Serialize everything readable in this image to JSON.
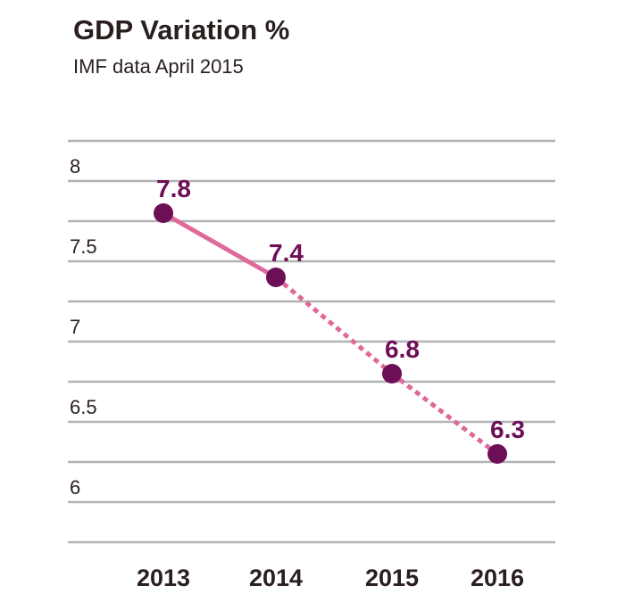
{
  "chart_data": {
    "type": "line",
    "title": "GDP Variation %",
    "subtitle": "IMF data April 2015",
    "categories": [
      "2013",
      "2014",
      "2015",
      "2016"
    ],
    "values": [
      7.8,
      7.4,
      6.8,
      6.3
    ],
    "data_labels": [
      "7.8",
      "7.4",
      "6.8",
      "6.3"
    ],
    "yticks": [
      {
        "value": 6,
        "label": "6"
      },
      {
        "value": 6.5,
        "label": "6.5"
      },
      {
        "value": 7,
        "label": "7"
      },
      {
        "value": 7.5,
        "label": "7.5"
      },
      {
        "value": 8,
        "label": "8"
      }
    ],
    "ylim": [
      5.75,
      8.25
    ],
    "grid": true,
    "solid_until_category": "2014",
    "colors": {
      "line": "#e0689a",
      "marker": "#6d0f57",
      "label": "#6d0f57",
      "grid": "#b3b3b3",
      "text": "#2a1e1e"
    }
  }
}
